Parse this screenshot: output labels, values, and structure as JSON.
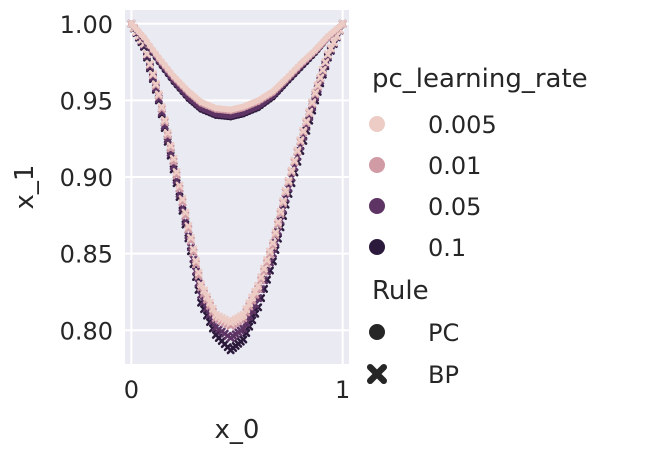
{
  "chart_data": {
    "type": "scatter",
    "xlabel": "x_0",
    "ylabel": "x_1",
    "xlim": [
      -0.03,
      1.03
    ],
    "ylim": [
      0.778,
      1.009
    ],
    "xticks": [
      {
        "value": 0,
        "label": "0"
      },
      {
        "value": 1,
        "label": "1"
      }
    ],
    "yticks": [
      {
        "value": 0.8,
        "label": "0.80"
      },
      {
        "value": 0.85,
        "label": "0.85"
      },
      {
        "value": 0.9,
        "label": "0.90"
      },
      {
        "value": 0.95,
        "label": "0.95"
      },
      {
        "value": 1.0,
        "label": "1.00"
      }
    ],
    "grid": true,
    "legend_placement": "right",
    "hue": {
      "title": "pc_learning_rate",
      "levels": [
        {
          "label": "0.005",
          "color": "#ecccc5"
        },
        {
          "label": "0.01",
          "color": "#d19ba5"
        },
        {
          "label": "0.05",
          "color": "#5e3465"
        },
        {
          "label": "0.1",
          "color": "#2c1a3c"
        }
      ]
    },
    "style": {
      "title": "Rule",
      "levels": [
        {
          "label": "PC",
          "marker": "circle"
        },
        {
          "label": "BP",
          "marker": "x"
        }
      ]
    },
    "series": [
      {
        "lr": "0.1",
        "rule": "BP",
        "x": [
          0,
          0.06,
          0.13,
          0.2,
          0.27,
          0.33,
          0.4,
          0.47,
          0.53,
          0.6,
          0.67,
          0.73,
          0.8,
          0.87,
          0.93,
          1
        ],
        "y": [
          1.0,
          0.985,
          0.95,
          0.905,
          0.86,
          0.818,
          0.797,
          0.787,
          0.794,
          0.815,
          0.845,
          0.882,
          0.917,
          0.95,
          0.978,
          1.0
        ]
      },
      {
        "lr": "0.05",
        "rule": "BP",
        "x": [
          0,
          0.06,
          0.13,
          0.2,
          0.27,
          0.33,
          0.4,
          0.47,
          0.53,
          0.6,
          0.67,
          0.73,
          0.8,
          0.87,
          0.93,
          1
        ],
        "y": [
          1.0,
          0.986,
          0.951,
          0.907,
          0.862,
          0.823,
          0.802,
          0.795,
          0.801,
          0.821,
          0.85,
          0.886,
          0.92,
          0.952,
          0.979,
          1.0
        ]
      },
      {
        "lr": "0.01",
        "rule": "BP",
        "x": [
          0,
          0.06,
          0.13,
          0.2,
          0.27,
          0.33,
          0.4,
          0.47,
          0.53,
          0.6,
          0.67,
          0.73,
          0.8,
          0.87,
          0.93,
          1
        ],
        "y": [
          1.0,
          0.987,
          0.953,
          0.91,
          0.866,
          0.828,
          0.808,
          0.803,
          0.808,
          0.827,
          0.855,
          0.89,
          0.923,
          0.954,
          0.98,
          1.0
        ]
      },
      {
        "lr": "0.005",
        "rule": "BP",
        "x": [
          0,
          0.06,
          0.13,
          0.2,
          0.27,
          0.33,
          0.4,
          0.47,
          0.53,
          0.6,
          0.67,
          0.73,
          0.8,
          0.87,
          0.93,
          1
        ],
        "y": [
          1.0,
          0.987,
          0.954,
          0.912,
          0.868,
          0.83,
          0.81,
          0.805,
          0.81,
          0.829,
          0.857,
          0.891,
          0.924,
          0.955,
          0.98,
          1.0
        ]
      },
      {
        "lr": "0.1",
        "rule": "PC",
        "x": [
          0,
          0.06,
          0.13,
          0.2,
          0.27,
          0.33,
          0.4,
          0.47,
          0.53,
          0.6,
          0.67,
          0.73,
          0.8,
          0.87,
          0.93,
          1
        ],
        "y": [
          1.0,
          0.99,
          0.975,
          0.962,
          0.951,
          0.944,
          0.94,
          0.939,
          0.941,
          0.945,
          0.952,
          0.961,
          0.971,
          0.981,
          0.991,
          1.0
        ]
      },
      {
        "lr": "0.05",
        "rule": "PC",
        "x": [
          0,
          0.06,
          0.13,
          0.2,
          0.27,
          0.33,
          0.4,
          0.47,
          0.53,
          0.6,
          0.67,
          0.73,
          0.8,
          0.87,
          0.93,
          1
        ],
        "y": [
          1.0,
          0.99,
          0.976,
          0.963,
          0.952,
          0.945,
          0.941,
          0.94,
          0.942,
          0.946,
          0.953,
          0.962,
          0.972,
          0.982,
          0.991,
          1.0
        ]
      },
      {
        "lr": "0.01",
        "rule": "PC",
        "x": [
          0,
          0.06,
          0.13,
          0.2,
          0.27,
          0.33,
          0.4,
          0.47,
          0.53,
          0.6,
          0.67,
          0.73,
          0.8,
          0.87,
          0.93,
          1
        ],
        "y": [
          1.0,
          0.991,
          0.977,
          0.965,
          0.955,
          0.948,
          0.944,
          0.943,
          0.945,
          0.949,
          0.955,
          0.963,
          0.973,
          0.982,
          0.991,
          1.0
        ]
      },
      {
        "lr": "0.005",
        "rule": "PC",
        "x": [
          0,
          0.06,
          0.13,
          0.2,
          0.27,
          0.33,
          0.4,
          0.47,
          0.53,
          0.6,
          0.67,
          0.73,
          0.8,
          0.87,
          0.93,
          1
        ],
        "y": [
          1.0,
          0.991,
          0.978,
          0.966,
          0.956,
          0.949,
          0.945,
          0.944,
          0.946,
          0.95,
          0.956,
          0.964,
          0.974,
          0.983,
          0.992,
          1.0
        ]
      }
    ]
  }
}
